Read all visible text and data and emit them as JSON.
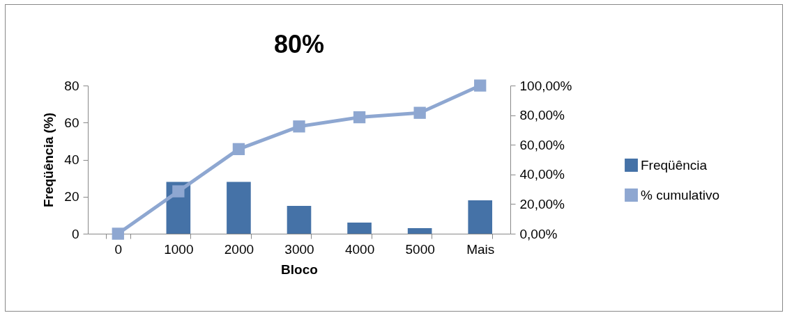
{
  "chart_data": {
    "type": "bar",
    "title": "80%",
    "xlabel": "Bloco",
    "ylabel": "Freqüência (%)",
    "categories": [
      "0",
      "1000",
      "2000",
      "3000",
      "4000",
      "5000",
      "Mais"
    ],
    "series": [
      {
        "name": "Freqüência",
        "color": "#4572a7",
        "values": [
          0,
          28,
          28,
          15,
          6,
          3,
          18
        ]
      },
      {
        "name": "% cumulativo",
        "type": "line",
        "axis": "y2",
        "color": "#8ea7d1",
        "values": [
          0,
          28.6,
          57.1,
          72.4,
          78.6,
          81.6,
          100
        ]
      }
    ],
    "ylim": [
      0,
      80
    ],
    "yticks": [
      0,
      20,
      40,
      60,
      80
    ],
    "y2lim": [
      0,
      100
    ],
    "y2ticks": [
      {
        "value": 0,
        "label": "0,00%"
      },
      {
        "value": 20,
        "label": "20,00%"
      },
      {
        "value": 40,
        "label": "40,00%"
      },
      {
        "value": 60,
        "label": "60,00%"
      },
      {
        "value": 80,
        "label": "80,00%"
      },
      {
        "value": 100,
        "label": "100,00%"
      }
    ],
    "marker": "square",
    "legend": "right",
    "grid": false
  }
}
